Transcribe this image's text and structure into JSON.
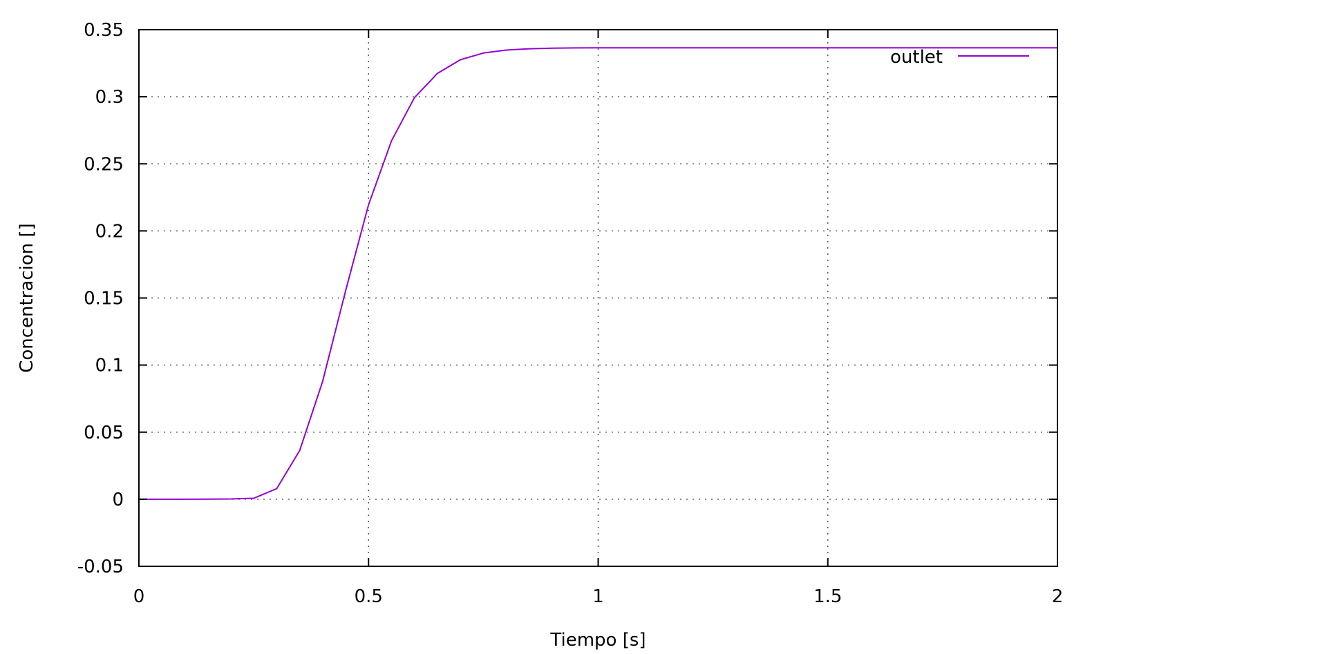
{
  "chart_data": {
    "type": "line",
    "title": "",
    "xlabel": "Tiempo [s]",
    "ylabel": "Concentracion []",
    "xlim": [
      0,
      2
    ],
    "ylim": [
      -0.05,
      0.35
    ],
    "x_ticks": [
      "0",
      "0.5",
      "1",
      "1.5",
      "2"
    ],
    "y_ticks": [
      "-0.05",
      "0",
      "0.05",
      "0.1",
      "0.15",
      "0.2",
      "0.25",
      "0.3",
      "0.35"
    ],
    "grid": true,
    "legend_position": "top-right",
    "colors": {
      "series": "#9400d3",
      "axis": "#000000",
      "grid": "#555555"
    },
    "series": [
      {
        "name": "outlet",
        "x": [
          0,
          0.05,
          0.1,
          0.15,
          0.2,
          0.25,
          0.3,
          0.35,
          0.4,
          0.45,
          0.5,
          0.55,
          0.6,
          0.65,
          0.7,
          0.75,
          0.8,
          0.85,
          0.9,
          0.95,
          1.0,
          1.5,
          2.0
        ],
        "y": [
          0,
          0,
          0,
          0.0001,
          0.0002,
          0.0007,
          0.0079,
          0.0363,
          0.0878,
          0.1553,
          0.2196,
          0.2672,
          0.2994,
          0.3174,
          0.3276,
          0.3326,
          0.3348,
          0.3358,
          0.3362,
          0.3364,
          0.3365,
          0.3365,
          0.3365
        ]
      }
    ]
  }
}
